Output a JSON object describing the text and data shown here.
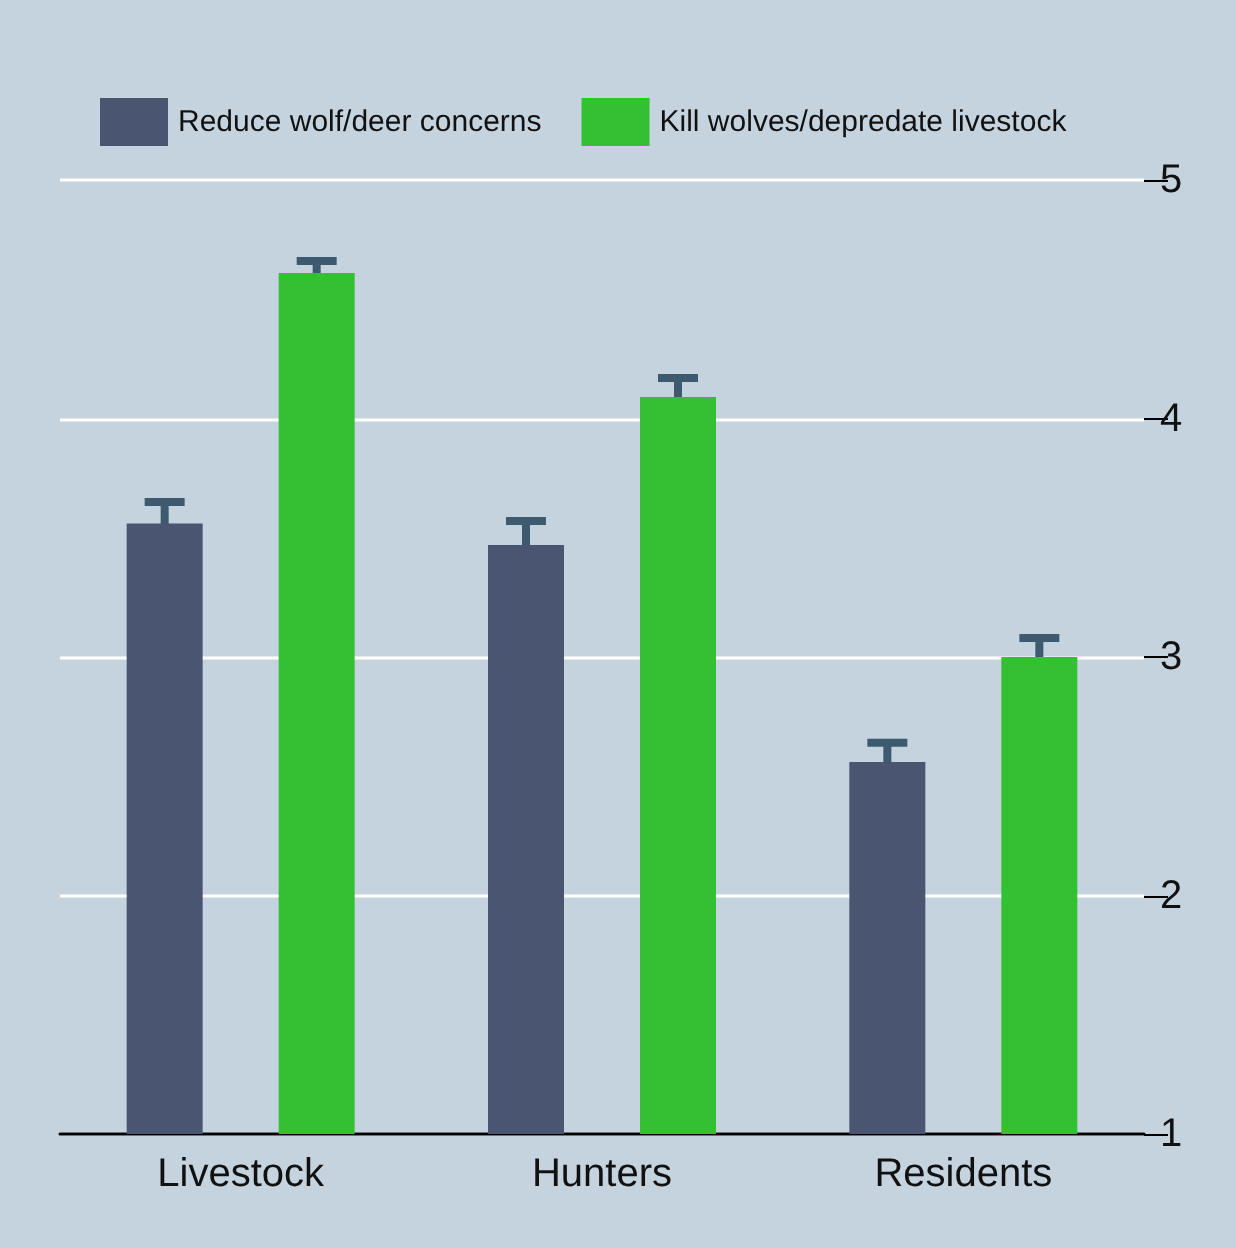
{
  "chart_data": {
    "type": "bar",
    "categories": [
      "Livestock",
      "Hunters",
      "Residents"
    ],
    "series": [
      {
        "name": "Reduce wolf/deer concerns",
        "color": "#4a5572",
        "values": [
          3.56,
          3.47,
          2.56
        ],
        "errors": [
          0.09,
          0.1,
          0.08
        ]
      },
      {
        "name": "Kill wolves/depredate livestock",
        "color": "#33c033",
        "values": [
          4.61,
          4.09,
          3.0
        ],
        "errors": [
          0.05,
          0.08,
          0.08
        ]
      }
    ],
    "ylim": [
      1,
      5
    ],
    "yticks": [
      1,
      2,
      3,
      4,
      5
    ],
    "grid": "y",
    "legend": "top"
  }
}
